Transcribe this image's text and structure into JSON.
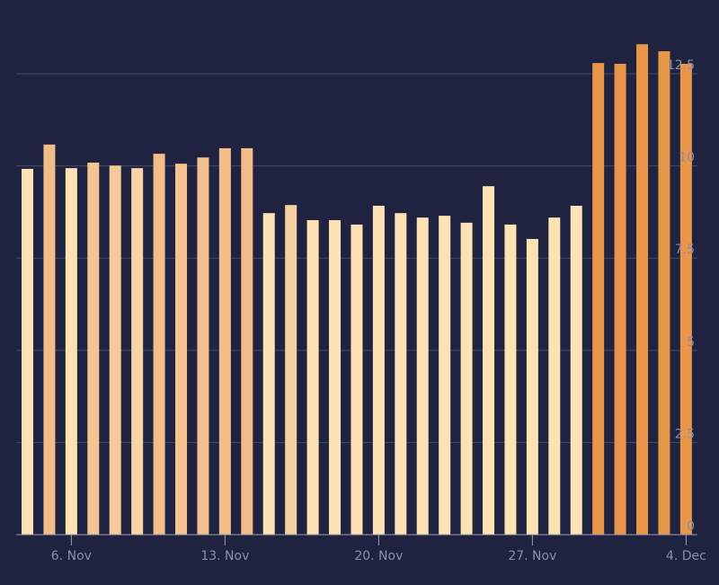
{
  "chart_data": {
    "type": "bar",
    "categories": [
      null,
      null,
      "6. Nov",
      null,
      null,
      null,
      null,
      null,
      null,
      "13. Nov",
      null,
      null,
      null,
      null,
      null,
      null,
      "20. Nov",
      null,
      null,
      null,
      null,
      null,
      null,
      "27. Nov",
      null,
      null,
      null,
      null,
      null,
      null,
      "4. Dec"
    ],
    "values": [
      9.92,
      10.58,
      9.94,
      10.09,
      10.01,
      9.94,
      10.33,
      10.06,
      10.23,
      10.48,
      10.48,
      8.72,
      8.94,
      8.53,
      8.53,
      8.41,
      8.92,
      8.72,
      8.6,
      8.65,
      8.46,
      9.45,
      8.41,
      8.02,
      8.6,
      8.92,
      12.79,
      12.77,
      13.3,
      13.11,
      12.77
    ],
    "colors": [
      "#fde2b5",
      "#f2bd88",
      "#fde2b5",
      "#f4c590",
      "#f6ca98",
      "#f9d4a6",
      "#f2bd88",
      "#f4c590",
      "#f2c08c",
      "#f2bd88",
      "#f2bd88",
      "#fde2b5",
      "#f8d0a0",
      "#fde2b5",
      "#fde2b5",
      "#fde2b5",
      "#fde2b5",
      "#fde2b5",
      "#fde2b5",
      "#fde2b5",
      "#fde2b5",
      "#fde2b5",
      "#fde2b5",
      "#fde2b5",
      "#fde2b5",
      "#fde2b5",
      "#e8964a",
      "#e8964a",
      "#e8964a",
      "#e8964a",
      "#e8964a"
    ],
    "ylim": [
      0,
      14.5
    ],
    "yticks": [
      0,
      2.5,
      5,
      7.5,
      10,
      12.5
    ],
    "grid": true
  }
}
